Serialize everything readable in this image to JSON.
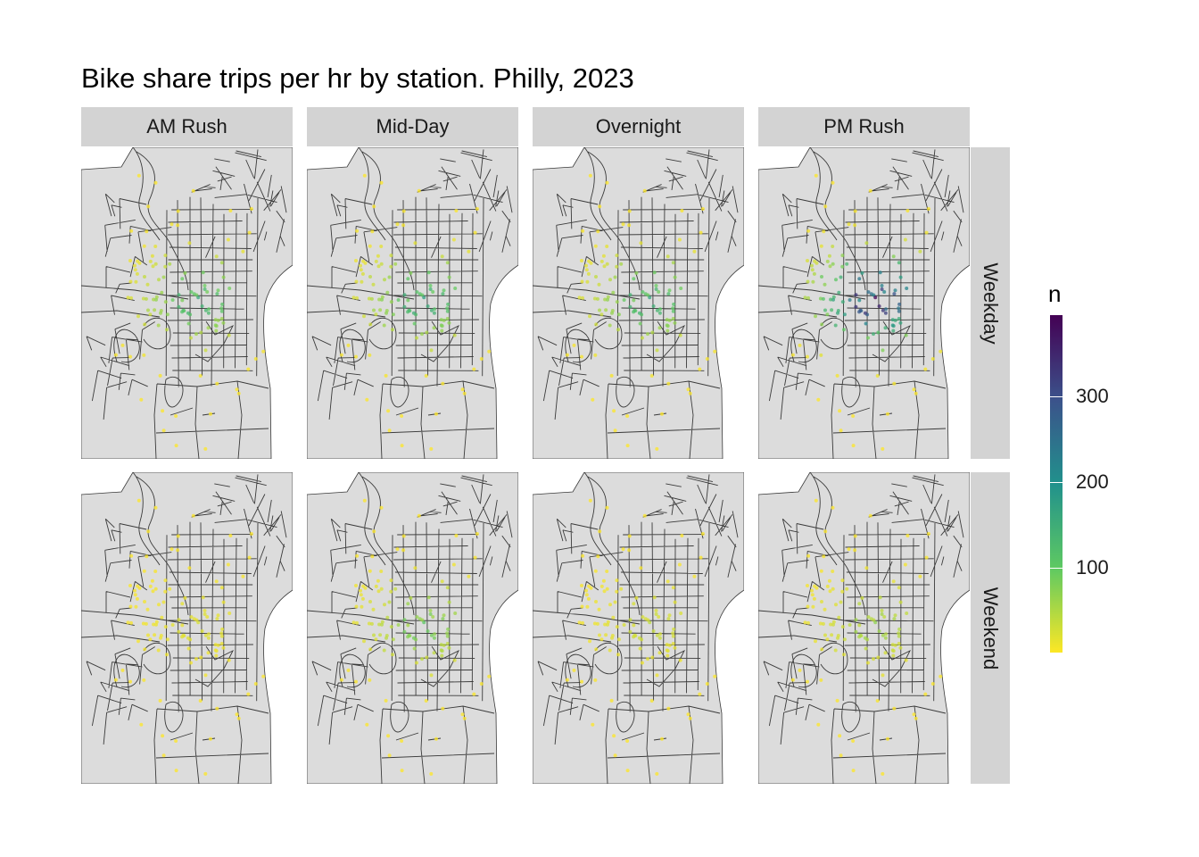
{
  "title": "Bike share trips per hr by station. Philly, 2023",
  "facets": {
    "columns": [
      "AM Rush",
      "Mid-Day",
      "Overnight",
      "PM Rush"
    ],
    "rows": [
      "Weekday",
      "Weekend"
    ]
  },
  "legend": {
    "title": "n",
    "range": [
      1,
      395
    ],
    "ticks": [
      {
        "value": 100,
        "label": "100"
      },
      {
        "value": 200,
        "label": "200"
      },
      {
        "value": 300,
        "label": "300"
      }
    ],
    "palette": [
      "#fde725",
      "#5ec962",
      "#21918c",
      "#3b528b",
      "#440154"
    ]
  },
  "colors": {
    "land": "#dcdcdc",
    "tract_border": "#3a3a3a",
    "strip": "#d3d3d3"
  },
  "chart_data": {
    "type": "map",
    "description_of_encoding": "points = bike share stations, color = trips per hour (n)",
    "intensity_by_panel": {
      "Weekday": {
        "AM Rush": 160,
        "Mid-Day": 175,
        "Overnight": 165,
        "PM Rush": 395
      },
      "Weekend": {
        "AM Rush": 25,
        "Mid-Day": 105,
        "Overnight": 40,
        "PM Rush": 70
      }
    }
  }
}
